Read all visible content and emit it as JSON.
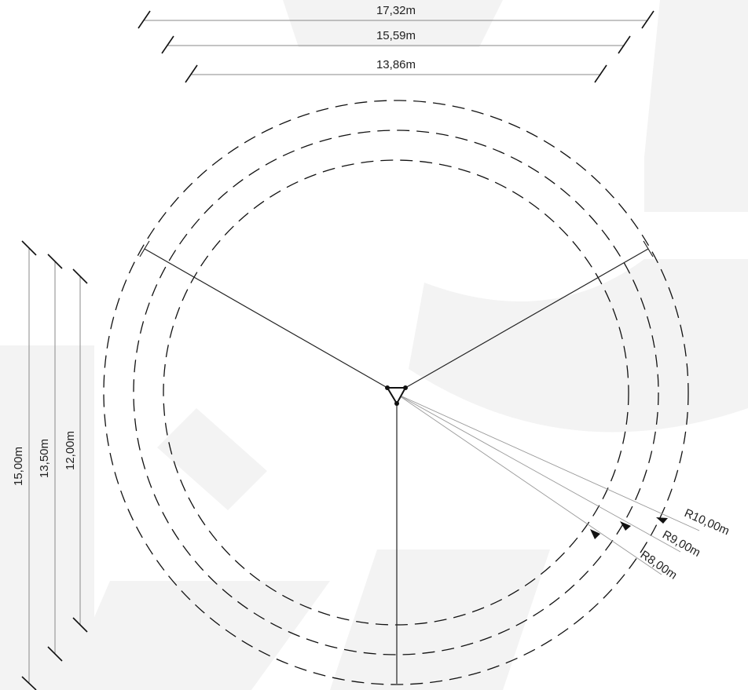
{
  "horizontal_dimensions": [
    {
      "id": "h1",
      "label": "17,32m"
    },
    {
      "id": "h2",
      "label": "15,59m"
    },
    {
      "id": "h3",
      "label": "13,86m"
    }
  ],
  "vertical_dimensions": [
    {
      "id": "v1",
      "label": "15,00m"
    },
    {
      "id": "v2",
      "label": "13,50m"
    },
    {
      "id": "v3",
      "label": "12,00m"
    }
  ],
  "radius_labels": [
    {
      "id": "r10",
      "label": "R10,00m"
    },
    {
      "id": "r9",
      "label": "R9,00m"
    },
    {
      "id": "r8",
      "label": "R8,00m"
    }
  ]
}
